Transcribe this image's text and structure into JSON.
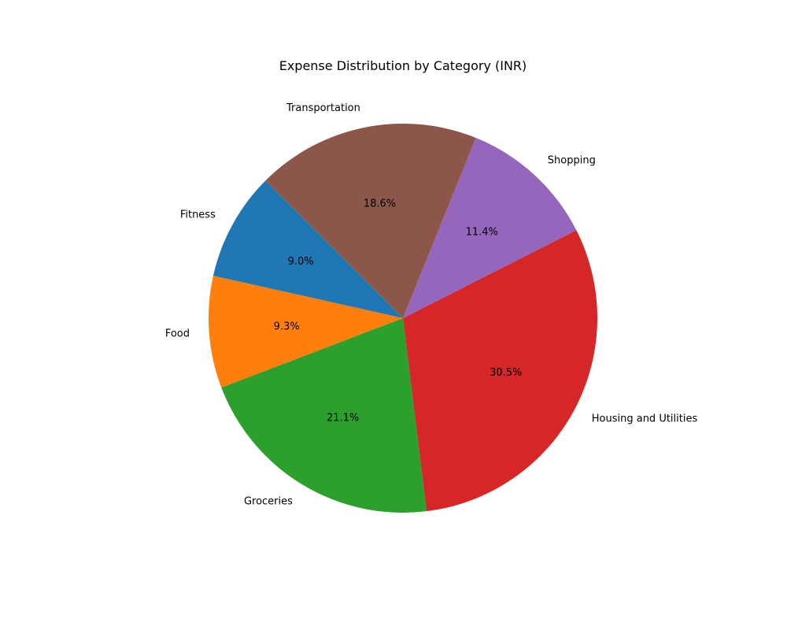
{
  "chart_data": {
    "type": "pie",
    "title": "Expense Distribution by Category (INR)",
    "start_angle_deg": 135,
    "direction": "counterclockwise",
    "slices": [
      {
        "label": "Fitness",
        "percent": 9.0,
        "pct_text": "9.0%",
        "color": "#1f77b4"
      },
      {
        "label": "Food",
        "percent": 9.3,
        "pct_text": "9.3%",
        "color": "#ff7f0e"
      },
      {
        "label": "Groceries",
        "percent": 21.1,
        "pct_text": "21.1%",
        "color": "#2ca02c"
      },
      {
        "label": "Housing and Utilities",
        "percent": 30.5,
        "pct_text": "30.5%",
        "color": "#d62728"
      },
      {
        "label": "Shopping",
        "percent": 11.4,
        "pct_text": "11.4%",
        "color": "#9467bd"
      },
      {
        "label": "Transportation",
        "percent": 18.6,
        "pct_text": "18.6%",
        "color": "#8c564b"
      }
    ]
  }
}
